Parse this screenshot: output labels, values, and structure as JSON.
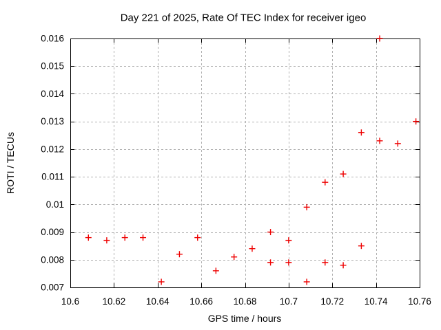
{
  "window": {
    "background": "#ffffff"
  },
  "chart_data": {
    "type": "scatter",
    "title": "Day 221 of 2025, Rate Of TEC Index for receiver igeo",
    "xlabel": "GPS time / hours",
    "ylabel": "ROTI / TECUs",
    "xlim": [
      10.6,
      10.76
    ],
    "ylim": [
      0.007,
      0.016
    ],
    "xticks": [
      {
        "v": 10.6,
        "label": "10.6"
      },
      {
        "v": 10.62,
        "label": "10.62"
      },
      {
        "v": 10.64,
        "label": "10.64"
      },
      {
        "v": 10.66,
        "label": "10.66"
      },
      {
        "v": 10.68,
        "label": "10.68"
      },
      {
        "v": 10.7,
        "label": "10.7"
      },
      {
        "v": 10.72,
        "label": "10.72"
      },
      {
        "v": 10.74,
        "label": "10.74"
      },
      {
        "v": 10.76,
        "label": "10.76"
      }
    ],
    "yticks": [
      {
        "v": 0.007,
        "label": "0.007"
      },
      {
        "v": 0.008,
        "label": "0.008"
      },
      {
        "v": 0.009,
        "label": "0.009"
      },
      {
        "v": 0.01,
        "label": "0.01"
      },
      {
        "v": 0.011,
        "label": "0.011"
      },
      {
        "v": 0.012,
        "label": "0.012"
      },
      {
        "v": 0.013,
        "label": "0.013"
      },
      {
        "v": 0.014,
        "label": "0.014"
      },
      {
        "v": 0.015,
        "label": "0.015"
      },
      {
        "v": 0.016,
        "label": "0.016"
      }
    ],
    "grid": true,
    "legend": "none",
    "marker": {
      "shape": "plus",
      "color": "#ee0000",
      "size": 4.5,
      "stroke_width": 1.4
    },
    "grid_color": "#b0b0b0",
    "axis_color": "#000000",
    "series": [
      {
        "name": "ROTI",
        "points": [
          [
            10.6083,
            0.0088
          ],
          [
            10.6167,
            0.0087
          ],
          [
            10.625,
            0.0088
          ],
          [
            10.6333,
            0.0088
          ],
          [
            10.6417,
            0.0072
          ],
          [
            10.65,
            0.0082
          ],
          [
            10.6583,
            0.0088
          ],
          [
            10.6667,
            0.0076
          ],
          [
            10.675,
            0.0081
          ],
          [
            10.6833,
            0.0084
          ],
          [
            10.6917,
            0.009
          ],
          [
            10.6917,
            0.0079
          ],
          [
            10.7,
            0.0087
          ],
          [
            10.7,
            0.0079
          ],
          [
            10.7083,
            0.0099
          ],
          [
            10.7083,
            0.0072
          ],
          [
            10.7167,
            0.0108
          ],
          [
            10.7167,
            0.0079
          ],
          [
            10.725,
            0.0111
          ],
          [
            10.725,
            0.0078
          ],
          [
            10.7333,
            0.0126
          ],
          [
            10.7333,
            0.0085
          ],
          [
            10.7417,
            0.016
          ],
          [
            10.7417,
            0.0123
          ],
          [
            10.75,
            0.0122
          ],
          [
            10.7583,
            0.013
          ]
        ]
      }
    ]
  }
}
